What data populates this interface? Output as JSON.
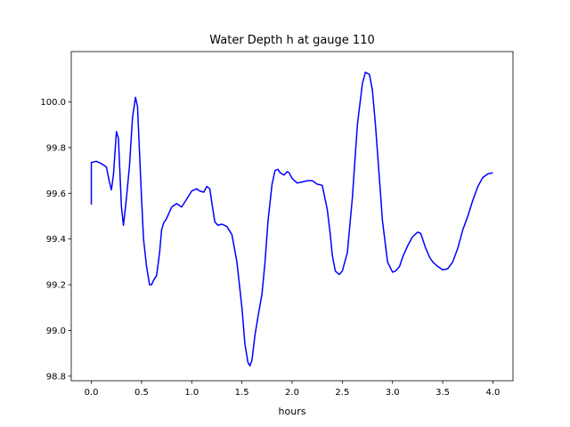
{
  "chart_data": {
    "type": "line",
    "title": "Water Depth h at gauge 110",
    "xlabel": "hours",
    "ylabel": "",
    "xlim": [
      -0.2,
      4.2
    ],
    "ylim": [
      98.78,
      100.22
    ],
    "xticks": [
      0.0,
      0.5,
      1.0,
      1.5,
      2.0,
      2.5,
      3.0,
      3.5,
      4.0
    ],
    "xtick_labels": [
      "0.0",
      "0.5",
      "1.0",
      "1.5",
      "2.0",
      "2.5",
      "3.0",
      "3.5",
      "4.0"
    ],
    "yticks": [
      98.8,
      99.0,
      99.2,
      99.4,
      99.6,
      99.8,
      100.0
    ],
    "ytick_labels": [
      "98.8",
      "99.0",
      "99.2",
      "99.4",
      "99.6",
      "99.8",
      "100.0"
    ],
    "grid": false,
    "series": [
      {
        "name": "",
        "color": "#0000ff",
        "x": [
          0.0,
          0.0,
          0.05,
          0.1,
          0.15,
          0.18,
          0.2,
          0.22,
          0.25,
          0.27,
          0.3,
          0.32,
          0.35,
          0.38,
          0.41,
          0.44,
          0.46,
          0.48,
          0.5,
          0.52,
          0.55,
          0.58,
          0.6,
          0.62,
          0.65,
          0.68,
          0.7,
          0.72,
          0.75,
          0.8,
          0.85,
          0.9,
          0.95,
          1.0,
          1.05,
          1.08,
          1.12,
          1.15,
          1.18,
          1.2,
          1.23,
          1.26,
          1.3,
          1.35,
          1.4,
          1.45,
          1.5,
          1.53,
          1.56,
          1.58,
          1.6,
          1.63,
          1.66,
          1.7,
          1.73,
          1.76,
          1.8,
          1.83,
          1.86,
          1.88,
          1.92,
          1.95,
          1.97,
          2.0,
          2.05,
          2.1,
          2.15,
          2.2,
          2.25,
          2.3,
          2.35,
          2.38,
          2.4,
          2.43,
          2.47,
          2.5,
          2.55,
          2.6,
          2.65,
          2.7,
          2.73,
          2.77,
          2.8,
          2.83,
          2.86,
          2.9,
          2.95,
          3.0,
          3.03,
          3.07,
          3.1,
          3.15,
          3.2,
          3.25,
          3.28,
          3.3,
          3.33,
          3.37,
          3.4,
          3.45,
          3.5,
          3.55,
          3.6,
          3.65,
          3.7,
          3.75,
          3.8,
          3.85,
          3.9,
          3.95,
          4.0
        ],
        "y": [
          99.55,
          99.735,
          99.74,
          99.73,
          99.715,
          99.65,
          99.615,
          99.68,
          99.87,
          99.84,
          99.54,
          99.46,
          99.58,
          99.72,
          99.93,
          100.02,
          99.98,
          99.78,
          99.58,
          99.4,
          99.28,
          99.2,
          99.2,
          99.22,
          99.24,
          99.34,
          99.44,
          99.47,
          99.49,
          99.54,
          99.555,
          99.54,
          99.575,
          99.61,
          99.62,
          99.61,
          99.605,
          99.63,
          99.62,
          99.56,
          99.475,
          99.46,
          99.465,
          99.455,
          99.42,
          99.3,
          99.1,
          98.94,
          98.86,
          98.845,
          98.87,
          98.98,
          99.06,
          99.16,
          99.3,
          99.48,
          99.64,
          99.7,
          99.705,
          99.69,
          99.68,
          99.695,
          99.69,
          99.665,
          99.645,
          99.65,
          99.655,
          99.655,
          99.64,
          99.635,
          99.53,
          99.42,
          99.33,
          99.26,
          99.245,
          99.26,
          99.34,
          99.58,
          99.9,
          100.08,
          100.13,
          100.12,
          100.05,
          99.9,
          99.72,
          99.48,
          99.3,
          99.255,
          99.26,
          99.28,
          99.32,
          99.37,
          99.41,
          99.43,
          99.425,
          99.4,
          99.36,
          99.32,
          99.3,
          99.28,
          99.265,
          99.27,
          99.3,
          99.36,
          99.44,
          99.5,
          99.57,
          99.63,
          99.67,
          99.685,
          99.69
        ]
      }
    ]
  }
}
